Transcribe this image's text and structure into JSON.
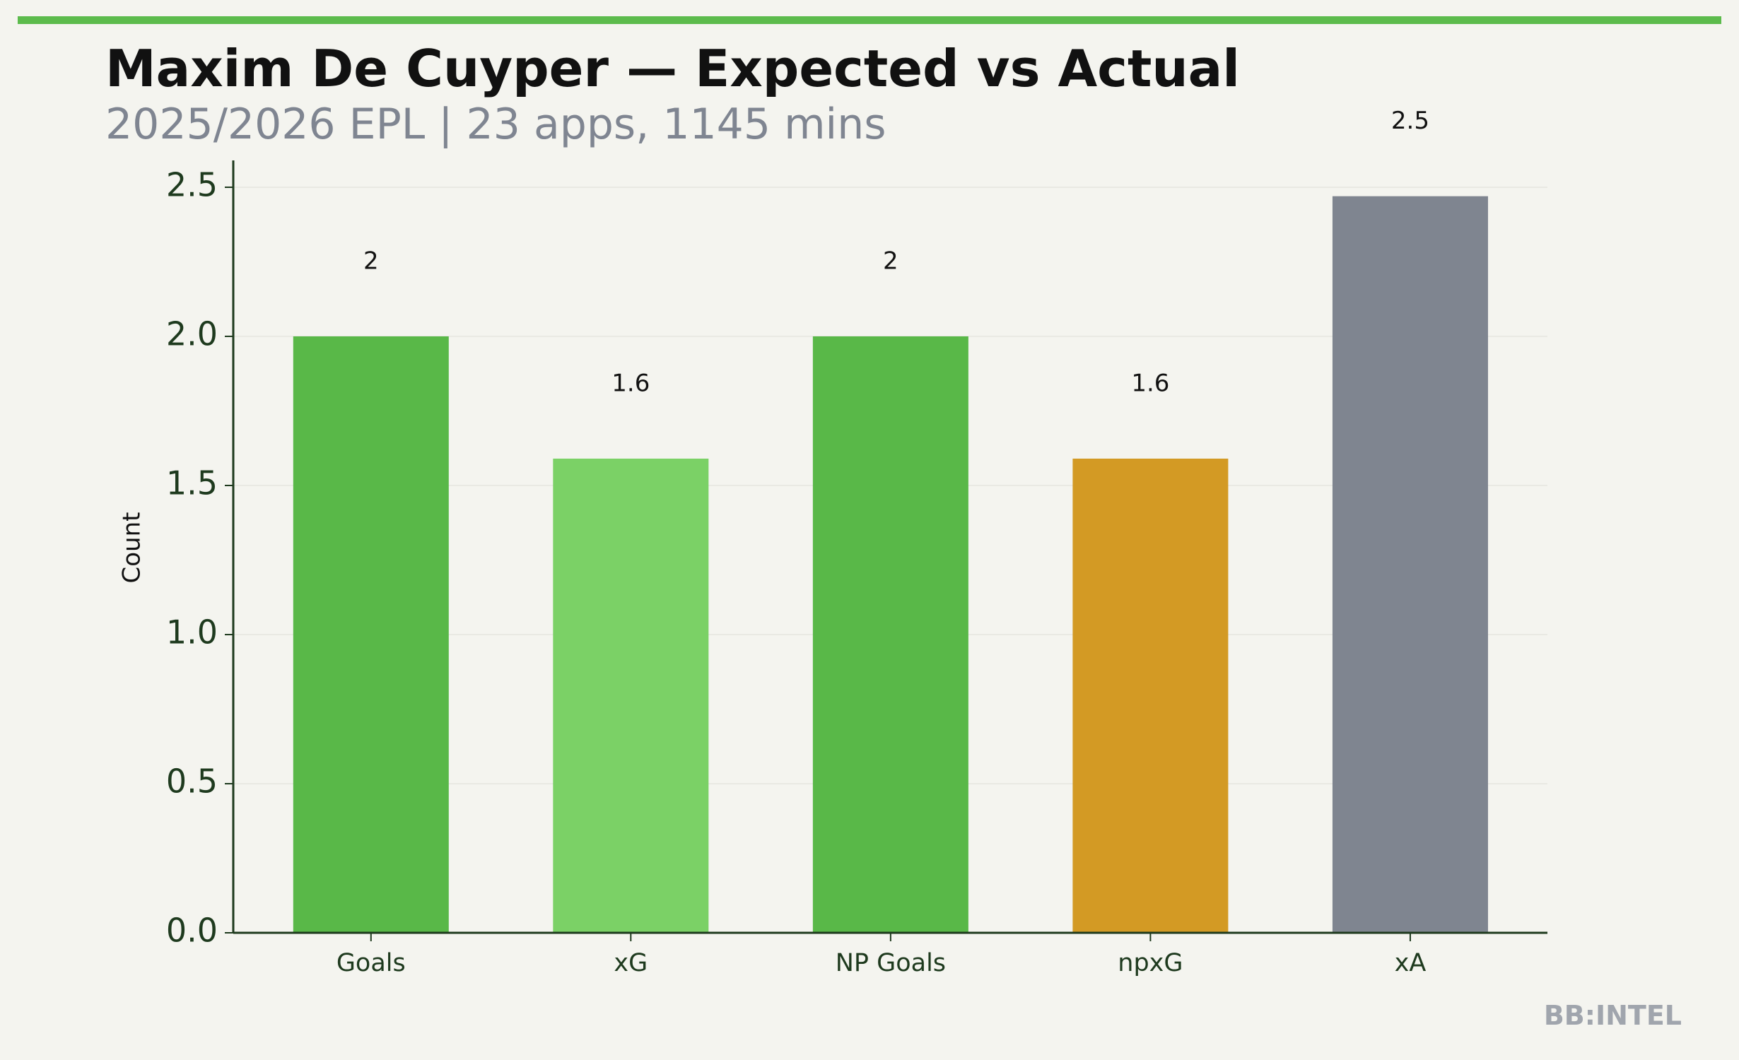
{
  "chart_data": {
    "type": "bar",
    "title": "Maxim De Cuyper — Expected vs Actual",
    "subtitle": "2025/2026 EPL | 23 apps, 1145 mins",
    "y_label": "Count",
    "watermark": "BB:INTEL",
    "categories": [
      "Goals",
      "xG",
      "NP Goals",
      "npxG",
      "xA"
    ],
    "values": [
      2,
      1.59,
      2,
      1.59,
      2.47
    ],
    "value_labels": [
      "2",
      "1.6",
      "2",
      "1.6",
      "2.5"
    ],
    "colors": [
      "#59b848",
      "#7bd166",
      "#59b848",
      "#d39a24",
      "#7f8590"
    ],
    "ylim": [
      0,
      2.59
    ],
    "yticks": [
      {
        "value": 0,
        "label": "0.0"
      },
      {
        "value": 0.5,
        "label": "0.5"
      },
      {
        "value": 1,
        "label": "1.0"
      },
      {
        "value": 1.5,
        "label": "1.5"
      },
      {
        "value": 2,
        "label": "2.0"
      },
      {
        "value": 2.5,
        "label": "2.5"
      }
    ],
    "grid": true
  }
}
